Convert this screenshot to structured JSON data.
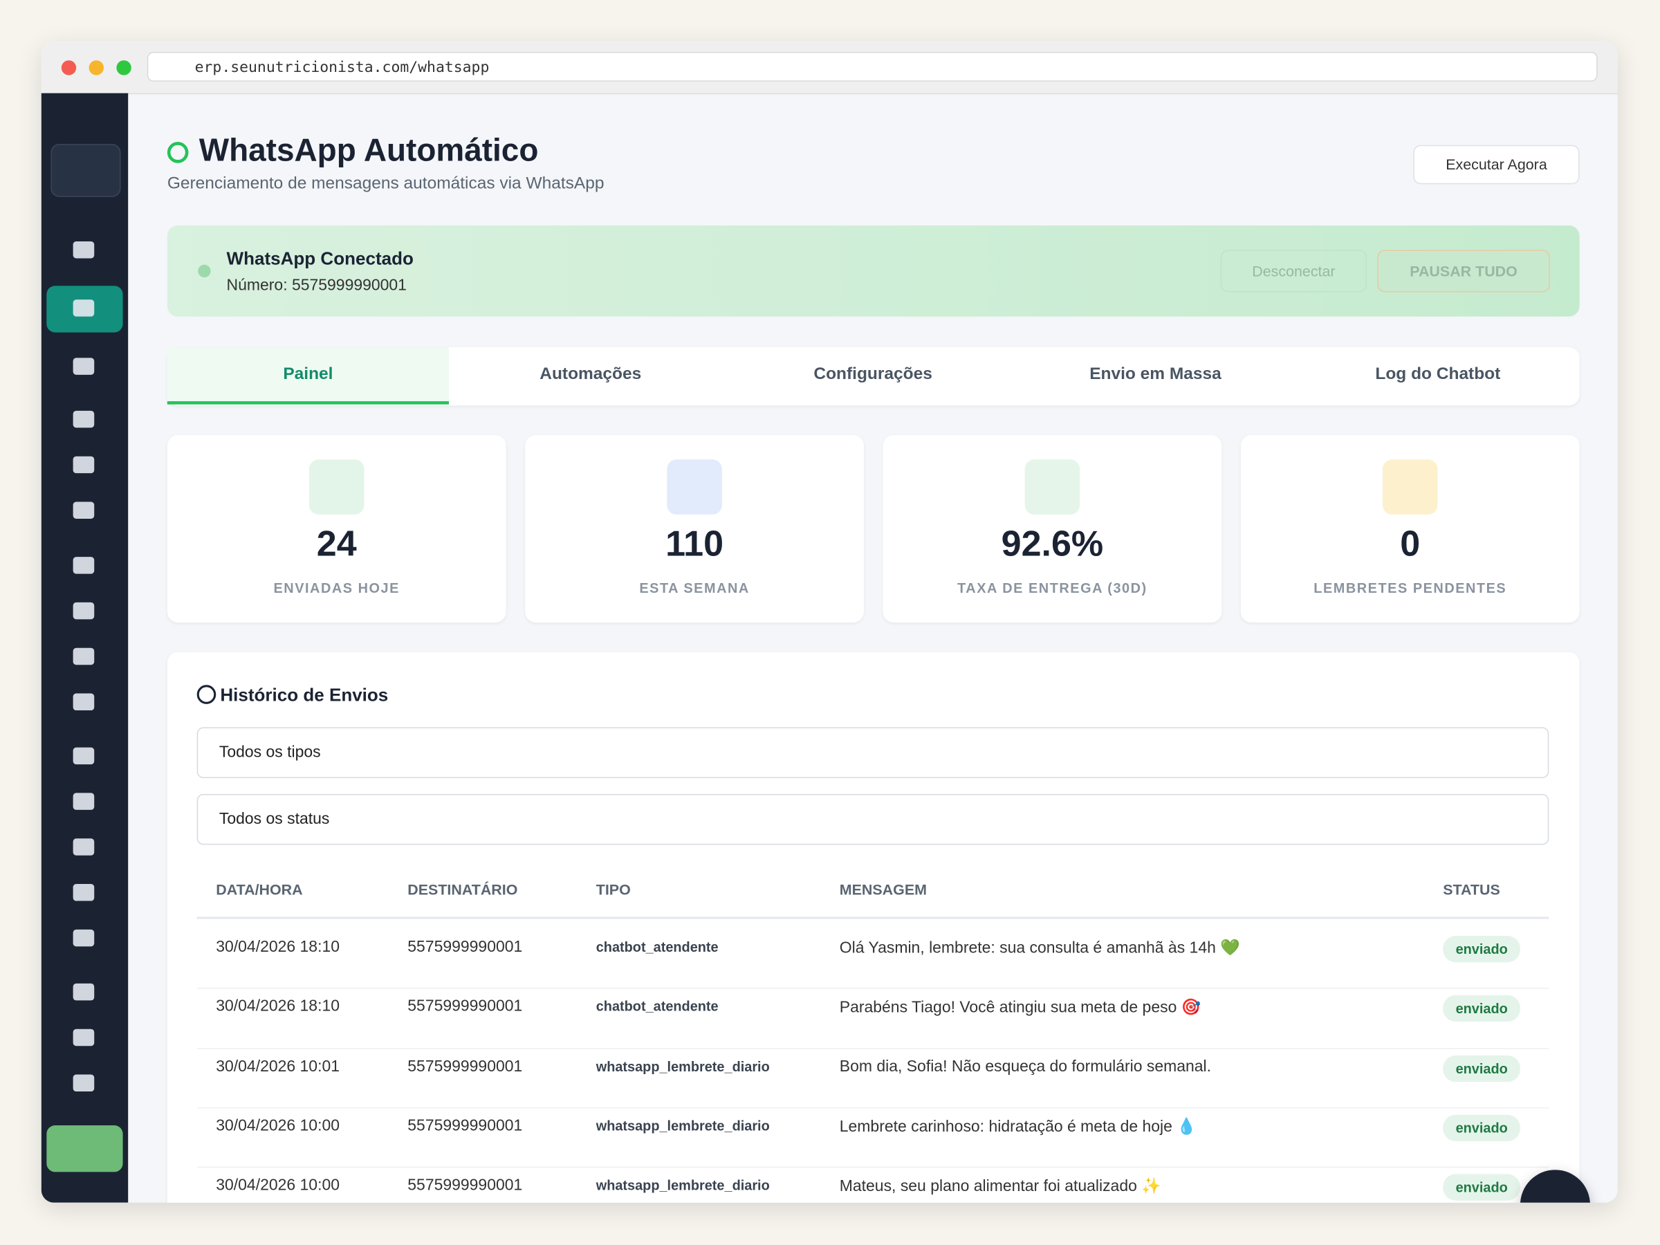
{
  "browser": {
    "url": "erp.seunutricionista.com/whatsapp"
  },
  "header": {
    "title": "WhatsApp Automático",
    "subtitle": "Gerenciamento de mensagens automáticas via WhatsApp",
    "action": "Executar Agora"
  },
  "connection": {
    "status": "WhatsApp Conectado",
    "number": "Número: 5575999990001",
    "disconnect": "Desconectar",
    "pause": "PAUSAR TUDO"
  },
  "tabs": [
    "Painel",
    "Automações",
    "Configurações",
    "Envio em Massa",
    "Log do Chatbot"
  ],
  "stats": [
    {
      "value": "24",
      "label": "ENVIADAS HOJE"
    },
    {
      "value": "110",
      "label": "ESTA SEMANA"
    },
    {
      "value": "92.6%",
      "label": "TAXA DE ENTREGA (30D)"
    },
    {
      "value": "0",
      "label": "LEMBRETES PENDENTES"
    }
  ],
  "history": {
    "title": "Histórico de Envios",
    "filters": [
      "Todos os tipos",
      "Todos os status"
    ],
    "table": {
      "columns": [
        "DATA/HORA",
        "DESTINATÁRIO",
        "TIPO",
        "MENSAGEM",
        "STATUS"
      ],
      "rows": [
        [
          "30/04/2026 18:10",
          "5575999990001",
          "chatbot_atendente",
          "Olá Yasmin, lembrete: sua consulta é amanhã às 14h 💚",
          "enviado"
        ],
        [
          "30/04/2026 18:10",
          "5575999990001",
          "chatbot_atendente",
          "Parabéns Tiago! Você atingiu sua meta de peso 🎯",
          "enviado"
        ],
        [
          "30/04/2026 10:01",
          "5575999990001",
          "whatsapp_lembrete_diario",
          "Bom dia, Sofia! Não esqueça do formulário semanal.",
          "enviado"
        ],
        [
          "30/04/2026 10:00",
          "5575999990001",
          "whatsapp_lembrete_diario",
          "Lembrete carinhoso: hidratação é meta de hoje 💧",
          "enviado"
        ],
        [
          "30/04/2026 10:00",
          "5575999990001",
          "whatsapp_lembrete_diario",
          "Mateus, seu plano alimentar foi atualizado ✨",
          "enviado"
        ]
      ]
    }
  }
}
